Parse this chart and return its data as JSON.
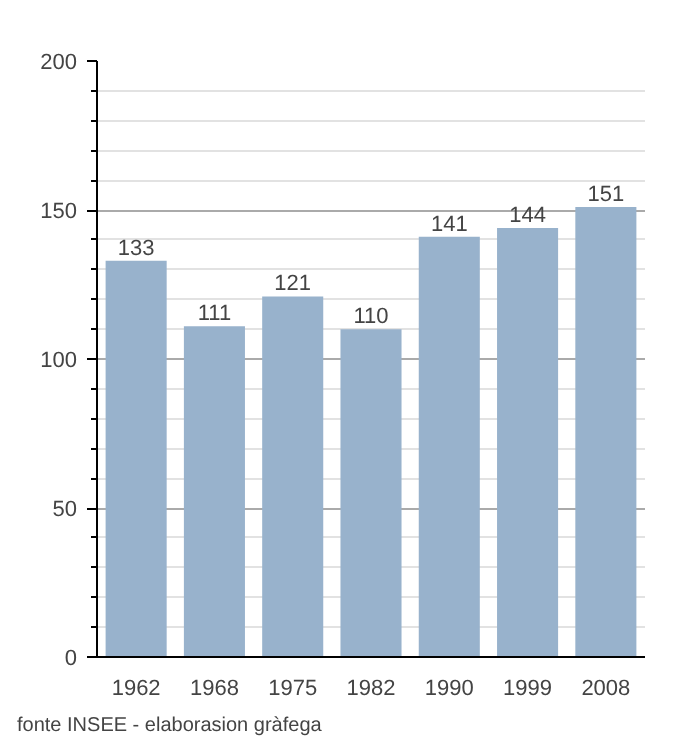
{
  "chart_data": {
    "type": "bar",
    "categories": [
      "1962",
      "1968",
      "1975",
      "1982",
      "1990",
      "1999",
      "2008"
    ],
    "values": [
      133,
      111,
      121,
      110,
      141,
      144,
      151
    ],
    "color": "#98b2cc",
    "ylim": [
      0,
      200
    ],
    "yticks": [
      0,
      {
        "value": 10,
        "label": null
      },
      {
        "value": 20,
        "label": null
      },
      {
        "value": 30,
        "label": null
      },
      {
        "value": 40,
        "label": null
      },
      50,
      {
        "value": 60,
        "label": null
      },
      {
        "value": 70,
        "label": null
      },
      {
        "value": 80,
        "label": null
      },
      {
        "value": 90,
        "label": null
      },
      100,
      {
        "value": 110,
        "label": null
      },
      {
        "value": 120,
        "label": null
      },
      {
        "value": 130,
        "label": null
      },
      {
        "value": 140,
        "label": null
      },
      150,
      {
        "value": 160,
        "label": null
      },
      {
        "value": 170,
        "label": null
      },
      {
        "value": 180,
        "label": null
      },
      {
        "value": 190,
        "label": null
      },
      200
    ],
    "grid": true,
    "data_labels": true,
    "annotations": [
      "fonte INSEE - elaborasion gràfega"
    ]
  }
}
